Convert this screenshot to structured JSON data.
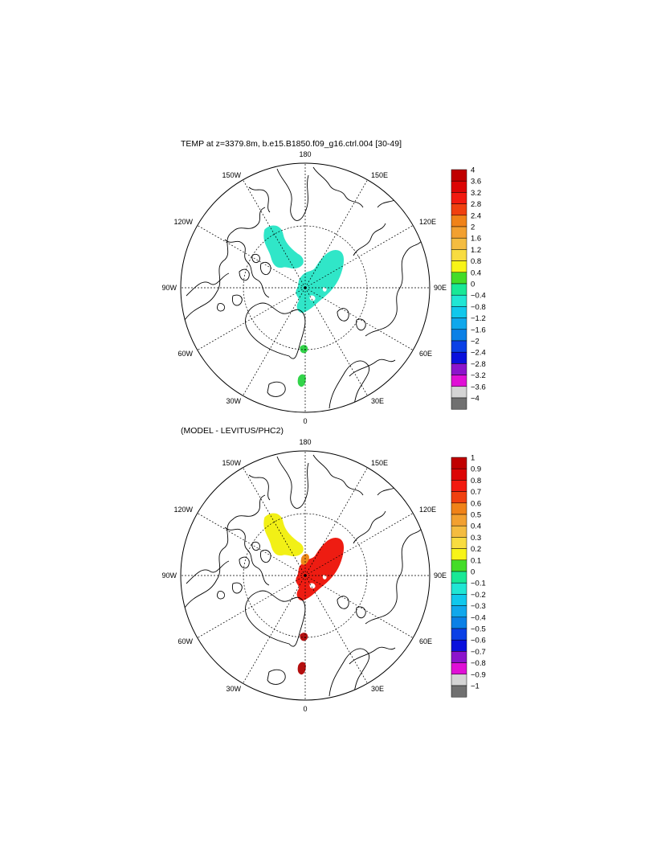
{
  "panels": [
    {
      "id": "top",
      "title": "TEMP at z=3379.8m, b.e15.B1850.f09_g16.ctrl.004 [30-49]",
      "colorbar": {
        "labels": [
          "4",
          "3.6",
          "3.2",
          "2.8",
          "2.4",
          "2",
          "1.6",
          "1.2",
          "0.8",
          "0.4",
          "0",
          "−0.4",
          "−0.8",
          "−1.2",
          "−1.6",
          "−2",
          "−2.4",
          "−2.8",
          "−3.2",
          "−3.6",
          "−4"
        ]
      },
      "anomalies": [
        {
          "name": "canada-basin-anomaly",
          "color": "#30e6c8"
        },
        {
          "name": "eurasian-basin-anomaly",
          "color": "#30e6c8"
        },
        {
          "name": "fram-strait-anomaly-1",
          "color": "#33d44a"
        },
        {
          "name": "fram-strait-anomaly-2",
          "color": "#33d44a"
        }
      ]
    },
    {
      "id": "bottom",
      "title": "(MODEL - LEVITUS/PHC2)",
      "colorbar": {
        "labels": [
          "1",
          "0.9",
          "0.8",
          "0.7",
          "0.6",
          "0.5",
          "0.4",
          "0.3",
          "0.2",
          "0.1",
          "0",
          "−0.1",
          "−0.2",
          "−0.3",
          "−0.4",
          "−0.5",
          "−0.6",
          "−0.7",
          "−0.8",
          "−0.9",
          "−1"
        ]
      },
      "anomalies": [
        {
          "name": "canada-basin-anomaly",
          "color": "#f2f016"
        },
        {
          "name": "eurasian-basin-anomaly",
          "color": "#ee1c12"
        },
        {
          "name": "lomonosov-anomaly",
          "color": "#ee8a1a"
        },
        {
          "name": "fram-strait-anomaly-1",
          "color": "#b40f0f"
        },
        {
          "name": "fram-strait-anomaly-2",
          "color": "#b40f0f"
        }
      ]
    }
  ],
  "longitude_labels": {
    "top": "180",
    "bottom": "0",
    "left": "90W",
    "right": "90E",
    "upper_left_1": "150W",
    "upper_left_2": "120W",
    "upper_right_1": "150E",
    "upper_right_2": "120E",
    "lower_left_1": "60W",
    "lower_left_2": "30W",
    "lower_right_1": "60E",
    "lower_right_2": "30E"
  },
  "palette": [
    "#c00000",
    "#dc0505",
    "#f21a10",
    "#f0400f",
    "#f08218",
    "#f2a030",
    "#f4bc40",
    "#f8dc40",
    "#f8f418",
    "#44dc28",
    "#18e896",
    "#20e6d4",
    "#10c8ec",
    "#10a8ec",
    "#0a80e6",
    "#0a40e6",
    "#0a10dc",
    "#8c14cc",
    "#e010d6",
    "#d4d4d4",
    "#707070"
  ]
}
